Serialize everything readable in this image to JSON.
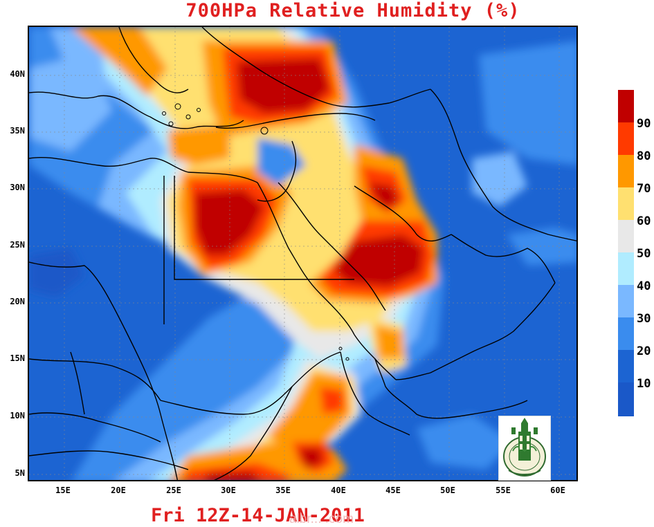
{
  "title": "700HPa Relative Humidity (%)",
  "footer": "Fri 12Z-14-JAN-2011",
  "watermark": "albr... .com",
  "map": {
    "lat_labels": [
      "40N",
      "35N",
      "30N",
      "25N",
      "20N",
      "15N",
      "10N",
      "5N"
    ],
    "lon_labels": [
      "15E",
      "20E",
      "25E",
      "30E",
      "35E",
      "40E",
      "45E",
      "50E",
      "55E",
      "60E"
    ],
    "base_color": "#1c64d2"
  },
  "colorbar": {
    "labels": [
      "90",
      "80",
      "70",
      "60",
      "50",
      "40",
      "30",
      "20",
      "10"
    ],
    "colors": [
      "#c00000",
      "#ff3a00",
      "#ff9800",
      "#ffe070",
      "#e8e8e8",
      "#b0ecff",
      "#7ab8ff",
      "#3a8cee",
      "#1c64d2",
      "#1a58c8"
    ]
  },
  "logo": {
    "icon": "university-emblem-icon"
  }
}
